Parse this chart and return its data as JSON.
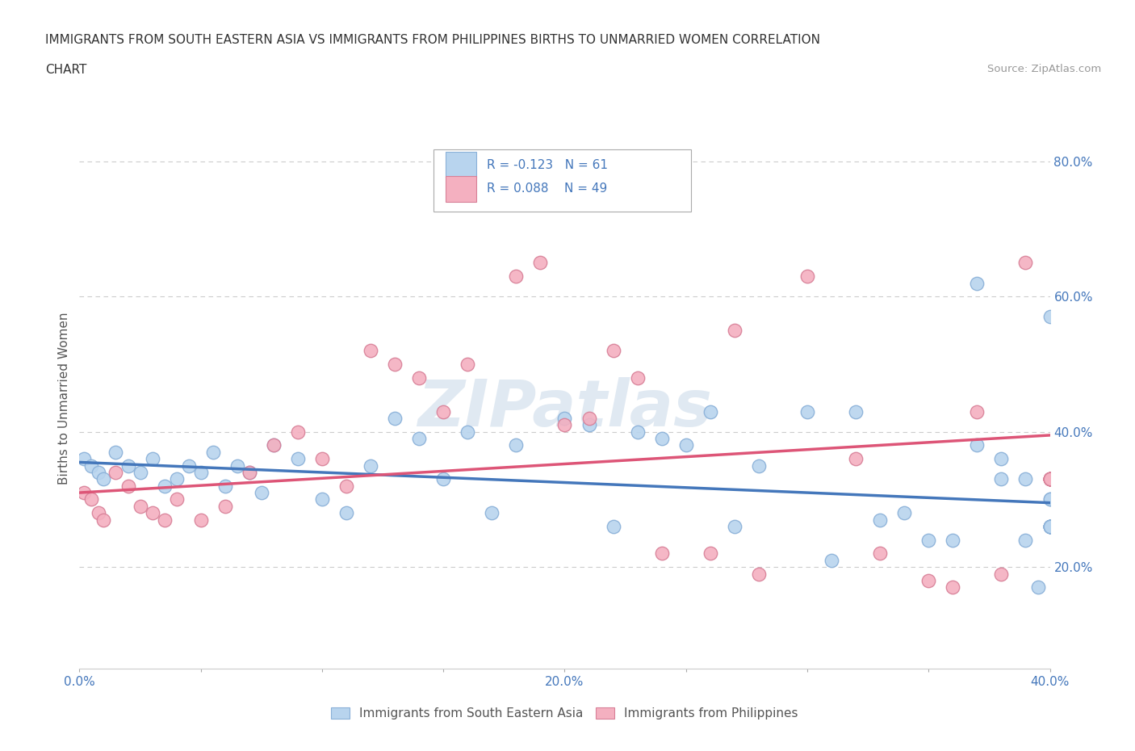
{
  "title_line1": "IMMIGRANTS FROM SOUTH EASTERN ASIA VS IMMIGRANTS FROM PHILIPPINES BIRTHS TO UNMARRIED WOMEN CORRELATION",
  "title_line2": "CHART",
  "source_text": "Source: ZipAtlas.com",
  "ylabel": "Births to Unmarried Women",
  "xlim": [
    0.0,
    0.4
  ],
  "ylim": [
    0.05,
    0.85
  ],
  "xtick_values": [
    0.0,
    0.05,
    0.1,
    0.15,
    0.2,
    0.25,
    0.3,
    0.35,
    0.4
  ],
  "xtick_labels": [
    "0.0%",
    "",
    "",
    "",
    "20.0%",
    "",
    "",
    "",
    "40.0%"
  ],
  "ytick_right_labels": [
    "20.0%",
    "40.0%",
    "60.0%",
    "80.0%"
  ],
  "ytick_right_values": [
    0.2,
    0.4,
    0.6,
    0.8
  ],
  "grid_color": "#cccccc",
  "background_color": "#ffffff",
  "series1_color": "#b8d4ee",
  "series1_edge": "#8ab0d8",
  "series2_color": "#f4b0c0",
  "series2_edge": "#d88098",
  "trendline1_color": "#4477bb",
  "trendline2_color": "#dd5577",
  "legend_R1": "R = -0.123",
  "legend_N1": "N = 61",
  "legend_R2": "R = 0.088",
  "legend_N2": "N = 49",
  "watermark": "ZIPatlas",
  "series1_label": "Immigrants from South Eastern Asia",
  "series2_label": "Immigrants from Philippines",
  "series1_x": [
    0.002,
    0.005,
    0.008,
    0.01,
    0.015,
    0.02,
    0.025,
    0.03,
    0.035,
    0.04,
    0.045,
    0.05,
    0.055,
    0.06,
    0.065,
    0.07,
    0.075,
    0.08,
    0.09,
    0.1,
    0.11,
    0.12,
    0.13,
    0.14,
    0.15,
    0.16,
    0.17,
    0.18,
    0.2,
    0.21,
    0.22,
    0.23,
    0.24,
    0.25,
    0.26,
    0.27,
    0.28,
    0.3,
    0.31,
    0.32,
    0.33,
    0.34,
    0.35,
    0.36,
    0.37,
    0.37,
    0.38,
    0.38,
    0.39,
    0.39,
    0.395,
    0.4,
    0.4,
    0.4,
    0.4,
    0.4,
    0.4,
    0.4,
    0.4,
    0.4,
    0.4
  ],
  "series1_y": [
    0.36,
    0.35,
    0.34,
    0.33,
    0.37,
    0.35,
    0.34,
    0.36,
    0.32,
    0.33,
    0.35,
    0.34,
    0.37,
    0.32,
    0.35,
    0.34,
    0.31,
    0.38,
    0.36,
    0.3,
    0.28,
    0.35,
    0.42,
    0.39,
    0.33,
    0.4,
    0.28,
    0.38,
    0.42,
    0.41,
    0.26,
    0.4,
    0.39,
    0.38,
    0.43,
    0.26,
    0.35,
    0.43,
    0.21,
    0.43,
    0.27,
    0.28,
    0.24,
    0.24,
    0.62,
    0.38,
    0.36,
    0.33,
    0.24,
    0.33,
    0.17,
    0.3,
    0.57,
    0.3,
    0.26,
    0.26,
    0.26,
    0.26,
    0.26,
    0.26,
    0.26
  ],
  "series2_x": [
    0.002,
    0.005,
    0.008,
    0.01,
    0.015,
    0.02,
    0.025,
    0.03,
    0.035,
    0.04,
    0.05,
    0.06,
    0.07,
    0.08,
    0.09,
    0.1,
    0.11,
    0.12,
    0.13,
    0.14,
    0.15,
    0.16,
    0.18,
    0.19,
    0.2,
    0.21,
    0.22,
    0.23,
    0.24,
    0.26,
    0.27,
    0.28,
    0.3,
    0.32,
    0.33,
    0.35,
    0.36,
    0.37,
    0.38,
    0.39,
    0.4,
    0.4,
    0.4,
    0.4,
    0.4,
    0.4,
    0.4,
    0.4,
    0.4
  ],
  "series2_y": [
    0.31,
    0.3,
    0.28,
    0.27,
    0.34,
    0.32,
    0.29,
    0.28,
    0.27,
    0.3,
    0.27,
    0.29,
    0.34,
    0.38,
    0.4,
    0.36,
    0.32,
    0.52,
    0.5,
    0.48,
    0.43,
    0.5,
    0.63,
    0.65,
    0.41,
    0.42,
    0.52,
    0.48,
    0.22,
    0.22,
    0.55,
    0.19,
    0.63,
    0.36,
    0.22,
    0.18,
    0.17,
    0.43,
    0.19,
    0.65,
    0.33,
    0.33,
    0.33,
    0.33,
    0.33,
    0.33,
    0.33,
    0.33,
    0.33
  ],
  "trendline1_x": [
    0.0,
    0.4
  ],
  "trendline1_y": [
    0.355,
    0.295
  ],
  "trendline2_x": [
    0.0,
    0.4
  ],
  "trendline2_y": [
    0.31,
    0.395
  ]
}
